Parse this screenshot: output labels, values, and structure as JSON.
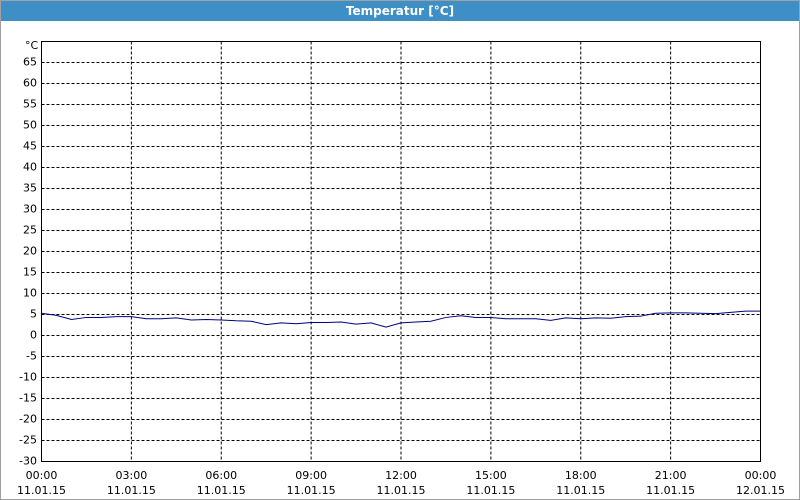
{
  "chart_data": {
    "type": "line",
    "title": "Temperatur [°C]",
    "ylabel": "°C",
    "x": [
      0,
      0.5,
      1,
      1.5,
      2,
      2.5,
      3,
      3.5,
      4,
      4.5,
      5,
      5.5,
      6,
      6.5,
      7,
      7.5,
      8,
      8.5,
      9,
      9.5,
      10,
      10.5,
      11,
      11.5,
      12,
      12.5,
      13,
      13.5,
      14,
      14.5,
      15,
      15.5,
      16,
      16.5,
      17,
      17.5,
      18,
      18.5,
      19,
      19.5,
      20,
      20.5,
      21,
      21.5,
      22,
      22.5,
      23,
      23.5,
      24
    ],
    "series": [
      {
        "color": "#000080",
        "values": [
          5.3,
          4.8,
          3.8,
          4.3,
          4.3,
          4.5,
          4.5,
          4.0,
          4.0,
          4.2,
          3.7,
          3.8,
          3.7,
          3.5,
          3.4,
          2.6,
          3.0,
          2.8,
          3.1,
          3.1,
          3.2,
          2.7,
          3.0,
          2.0,
          3.0,
          3.2,
          3.4,
          4.3,
          4.7,
          4.3,
          4.3,
          4.0,
          4.0,
          4.0,
          3.6,
          4.2,
          4.0,
          4.2,
          4.1,
          4.5,
          4.6,
          5.3,
          5.4,
          5.4,
          5.3,
          5.2,
          5.5,
          5.8,
          5.8
        ]
      }
    ],
    "xlim": [
      0,
      24
    ],
    "ylim": [
      -30,
      70
    ],
    "xticks": [
      {
        "value": 0,
        "label": "00:00",
        "date": "11.01.15"
      },
      {
        "value": 3,
        "label": "03:00",
        "date": "11.01.15"
      },
      {
        "value": 6,
        "label": "06:00",
        "date": "11.01.15"
      },
      {
        "value": 9,
        "label": "09:00",
        "date": "11.01.15"
      },
      {
        "value": 12,
        "label": "12:00",
        "date": "11.01.15"
      },
      {
        "value": 15,
        "label": "15:00",
        "date": "11.01.15"
      },
      {
        "value": 18,
        "label": "18:00",
        "date": "11.01.15"
      },
      {
        "value": 21,
        "label": "21:00",
        "date": "11.01.15"
      },
      {
        "value": 24,
        "label": "00:00",
        "date": "12.01.15"
      }
    ],
    "yticks": [
      -30,
      -25,
      -20,
      -15,
      -10,
      -5,
      0,
      5,
      10,
      15,
      20,
      25,
      30,
      35,
      40,
      45,
      50,
      55,
      60,
      65
    ],
    "grid": true
  }
}
